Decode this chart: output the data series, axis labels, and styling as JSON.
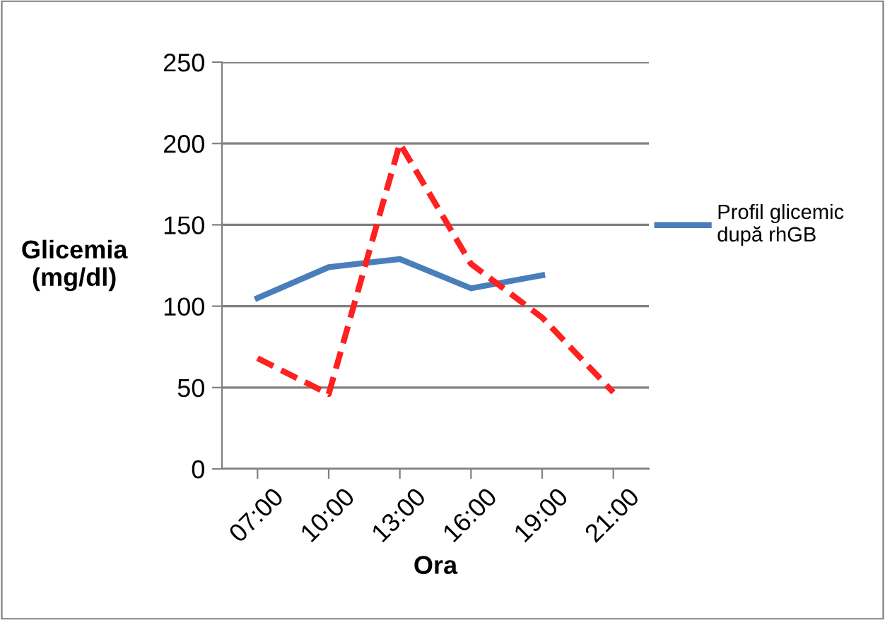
{
  "chart_data": {
    "type": "line",
    "xlabel": "Ora",
    "ylabel": "Glicemia\n(mg/dl)",
    "categories": [
      "07:00",
      "10:00",
      "13:00",
      "16:00",
      "19:00",
      "21:00"
    ],
    "series": [
      {
        "name": "Profil glicemic după rhGB",
        "color": "#4a7ebb",
        "values": [
          105,
          124,
          129,
          111,
          119,
          null
        ],
        "line_style": "solid"
      },
      {
        "color": "#ff2020",
        "values": [
          68,
          46,
          200,
          126,
          93,
          47
        ],
        "line_style": "dashed"
      }
    ],
    "ylim": [
      0,
      250
    ],
    "yticks": [
      0,
      50,
      100,
      150,
      200,
      250
    ],
    "grid": "y",
    "legend": "right",
    "marker": "none"
  }
}
